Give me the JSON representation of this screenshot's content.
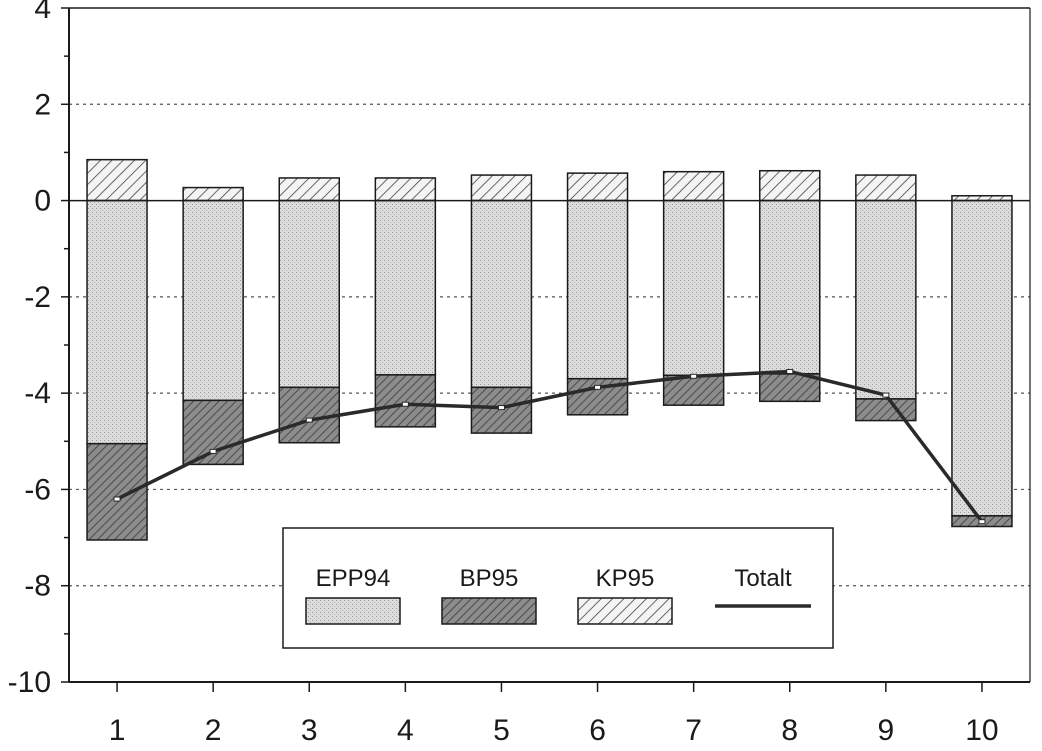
{
  "chart_data": {
    "type": "bar",
    "stacked": true,
    "categories": [
      "1",
      "2",
      "3",
      "4",
      "5",
      "6",
      "7",
      "8",
      "9",
      "10"
    ],
    "series": [
      {
        "name": "EPP94",
        "kind": "bar",
        "values": [
          -5.05,
          -4.15,
          -3.88,
          -3.62,
          -3.88,
          -3.7,
          -3.63,
          -3.6,
          -4.12,
          -6.55
        ]
      },
      {
        "name": "BP95",
        "kind": "bar",
        "values": [
          -2.0,
          -1.33,
          -1.15,
          -1.08,
          -0.95,
          -0.75,
          -0.62,
          -0.57,
          -0.45,
          -0.22
        ]
      },
      {
        "name": "KP95",
        "kind": "bar",
        "values": [
          0.85,
          0.27,
          0.47,
          0.47,
          0.53,
          0.57,
          0.6,
          0.62,
          0.53,
          0.1
        ]
      },
      {
        "name": "Totalt",
        "kind": "line",
        "values": [
          -6.2,
          -5.21,
          -4.56,
          -4.23,
          -4.3,
          -3.88,
          -3.65,
          -3.55,
          -4.04,
          -6.67
        ]
      }
    ],
    "ylim": [
      -10,
      4
    ],
    "yticks": [
      4,
      2,
      0,
      -2,
      -4,
      -6,
      -8,
      -10
    ],
    "title": "",
    "xlabel": "",
    "ylabel": "",
    "grid": "horizontal dotted",
    "legend_position": "bottom-center",
    "colors": {
      "epp_fill": "#d6d6d6",
      "bp_fill": "#8a8a8a",
      "kp_fill": "#f2f2f2",
      "line": "#2a2a2a",
      "axis": "#1a1a1a"
    }
  }
}
